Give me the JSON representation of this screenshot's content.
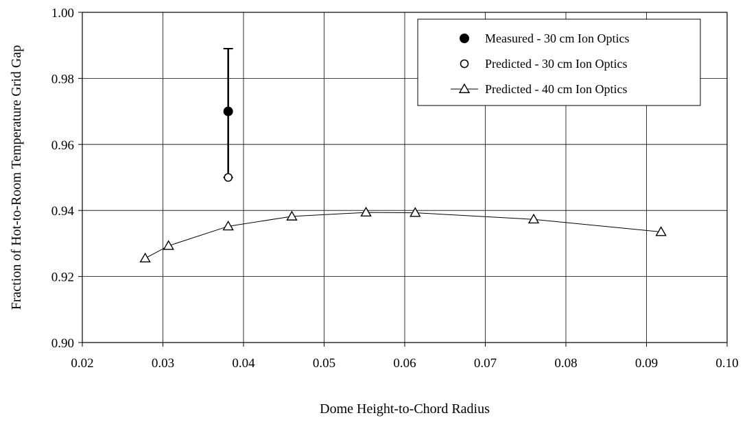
{
  "chart_data": {
    "type": "scatter",
    "title": "",
    "xlabel": "Dome Height-to-Chord Radius",
    "ylabel": "Fraction of Hot-to-Room Temperature Grid Gap",
    "xlim": [
      0.02,
      0.1
    ],
    "ylim": [
      0.9,
      1.0
    ],
    "x_ticks": [
      "0.02",
      "0.03",
      "0.04",
      "0.05",
      "0.06",
      "0.07",
      "0.08",
      "0.09",
      "0.10"
    ],
    "y_ticks": [
      "0.90",
      "0.92",
      "0.94",
      "0.96",
      "0.98",
      "1.00"
    ],
    "grid": true,
    "legend_position": "top-right",
    "series": [
      {
        "name": "Measured - 30 cm Ion Optics",
        "marker": "filled-circle",
        "line": false,
        "points": [
          {
            "x": 0.0381,
            "y": 0.97,
            "error_low": 0.95,
            "error_high": 0.989
          }
        ]
      },
      {
        "name": "Predicted - 30 cm Ion Optics",
        "marker": "open-circle",
        "line": false,
        "points": [
          {
            "x": 0.0381,
            "y": 0.95
          }
        ]
      },
      {
        "name": "Predicted - 40 cm Ion Optics",
        "marker": "open-triangle",
        "line": true,
        "points": [
          {
            "x": 0.0278,
            "y": 0.9255
          },
          {
            "x": 0.0307,
            "y": 0.9293
          },
          {
            "x": 0.0381,
            "y": 0.9352
          },
          {
            "x": 0.046,
            "y": 0.9382
          },
          {
            "x": 0.0552,
            "y": 0.9394
          },
          {
            "x": 0.0613,
            "y": 0.9393
          },
          {
            "x": 0.076,
            "y": 0.9373
          },
          {
            "x": 0.0918,
            "y": 0.9335
          }
        ]
      }
    ]
  }
}
